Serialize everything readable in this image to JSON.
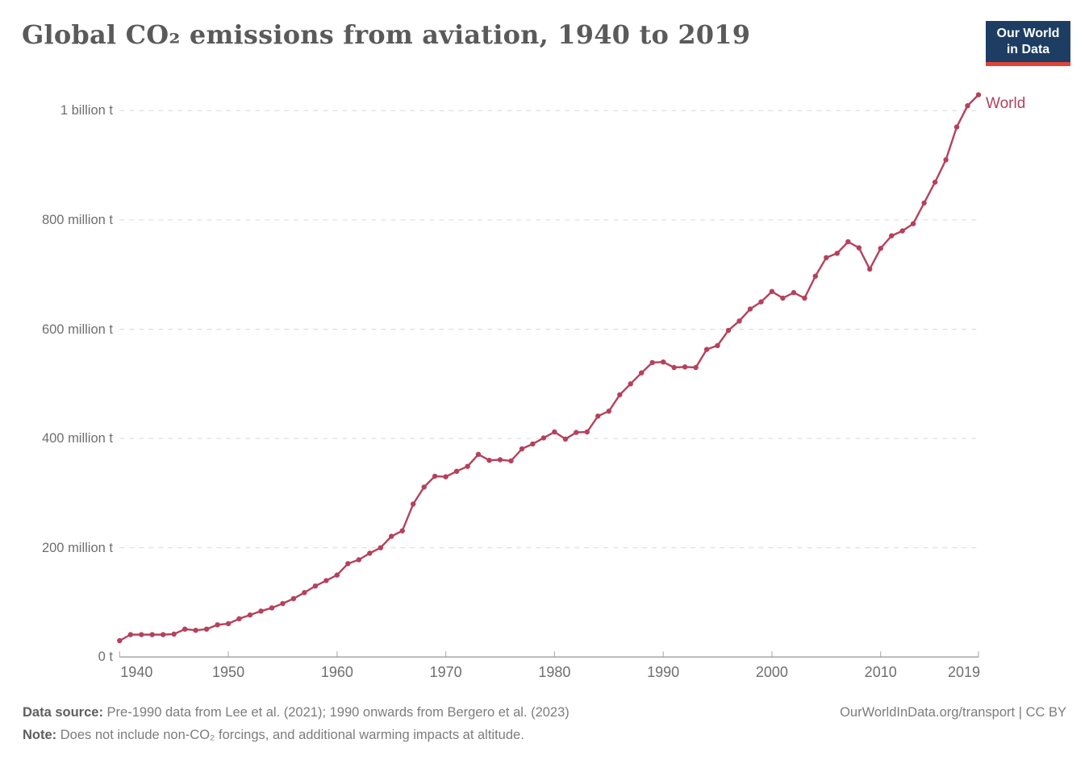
{
  "header": {
    "title": "Global CO₂ emissions from aviation, 1940 to 2019",
    "logo_line1": "Our World",
    "logo_line2": "in Data"
  },
  "chart_data": {
    "type": "line",
    "title": "Global CO₂ emissions from aviation, 1940 to 2019",
    "xlabel": "",
    "ylabel": "",
    "xlim": [
      1940,
      2019
    ],
    "ylim": [
      0,
      1050
    ],
    "grid": "dashed-horizontal",
    "legend_position": "end-of-line",
    "line_color": "#b5415c",
    "x_ticks": [
      "1940",
      "1950",
      "1960",
      "1970",
      "1980",
      "1990",
      "2000",
      "2010",
      "2019"
    ],
    "y_ticks": [
      {
        "value": 0,
        "label": "0 t"
      },
      {
        "value": 200,
        "label": "200 million t"
      },
      {
        "value": 400,
        "label": "400 million t"
      },
      {
        "value": 600,
        "label": "600 million t"
      },
      {
        "value": 800,
        "label": "800 million t"
      },
      {
        "value": 1000,
        "label": "1 billion t"
      }
    ],
    "unit": "t",
    "series": [
      {
        "name": "World",
        "color": "#b5415c",
        "years": [
          1940,
          1941,
          1942,
          1943,
          1944,
          1945,
          1946,
          1947,
          1948,
          1949,
          1950,
          1951,
          1952,
          1953,
          1954,
          1955,
          1956,
          1957,
          1958,
          1959,
          1960,
          1961,
          1962,
          1963,
          1964,
          1965,
          1966,
          1967,
          1968,
          1969,
          1970,
          1971,
          1972,
          1973,
          1974,
          1975,
          1976,
          1977,
          1978,
          1979,
          1980,
          1981,
          1982,
          1983,
          1984,
          1985,
          1986,
          1987,
          1988,
          1989,
          1990,
          1991,
          1992,
          1993,
          1994,
          1995,
          1996,
          1997,
          1998,
          1999,
          2000,
          2001,
          2002,
          2003,
          2004,
          2005,
          2006,
          2007,
          2008,
          2009,
          2010,
          2011,
          2012,
          2013,
          2014,
          2015,
          2016,
          2017,
          2018,
          2019
        ],
        "values_million_t": [
          30,
          41,
          41,
          41,
          41,
          42,
          51,
          49,
          51,
          59,
          61,
          70,
          77,
          84,
          90,
          98,
          107,
          118,
          130,
          140,
          150,
          171,
          178,
          190,
          200,
          221,
          231,
          280,
          311,
          331,
          330,
          340,
          349,
          371,
          360,
          361,
          359,
          381,
          390,
          401,
          412,
          399,
          411,
          412,
          441,
          450,
          480,
          500,
          520,
          539,
          540,
          530,
          531,
          530,
          563,
          570,
          598,
          615,
          637,
          650,
          669,
          657,
          667,
          657,
          697,
          731,
          739,
          760,
          749,
          710,
          748,
          771,
          780,
          793,
          831,
          869,
          910,
          970,
          1009,
          1029
        ]
      }
    ]
  },
  "footer": {
    "source_label": "Data source:",
    "source_text": " Pre-1990 data from Lee et al. (2021); 1990 onwards from Bergero et al. (2023)",
    "note_label": "Note:",
    "note_text": " Does not include non-CO₂ forcings, and additional warming impacts at altitude.",
    "credit": "OurWorldInData.org/transport | CC BY"
  }
}
